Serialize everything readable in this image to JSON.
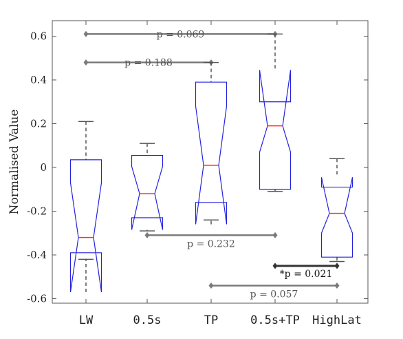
{
  "chart_data": {
    "type": "box",
    "xlabel": "",
    "ylabel": "Normalised Value",
    "ylim": [
      -0.64,
      0.66
    ],
    "yticks": [
      -0.6,
      -0.4,
      -0.2,
      0,
      0.2,
      0.4,
      0.6
    ],
    "ytick_labels": [
      "-0.6",
      "-0.4",
      "-0.2",
      "0",
      "0.2",
      "0.4",
      "0.6"
    ],
    "grid": false,
    "notched": true,
    "colors": {
      "box": "#2222dd",
      "median": "#ff2a2a",
      "whisker": "#555555",
      "bracket": "#7a7a7a",
      "bracket_sig": "#333333"
    },
    "categories": [
      "LW",
      "0.5s",
      "TP",
      "0.5s+TP",
      "HighLat"
    ],
    "boxes": [
      {
        "category": "LW",
        "whisker_low": -0.42,
        "q1": -0.39,
        "median": -0.32,
        "q3": 0.035,
        "whisker_high": 0.21,
        "notch_low": -0.57,
        "notch_high": -0.07
      },
      {
        "category": "0.5s",
        "whisker_low": -0.29,
        "q1": -0.23,
        "median": -0.12,
        "q3": 0.055,
        "whisker_high": 0.11,
        "notch_low": -0.285,
        "notch_high": 0.005
      },
      {
        "category": "TP",
        "whisker_low": -0.24,
        "q1": -0.16,
        "median": 0.01,
        "q3": 0.39,
        "whisker_high": 0.48,
        "notch_low": -0.26,
        "notch_high": 0.28
      },
      {
        "category": "0.5s+TP",
        "whisker_low": -0.11,
        "q1": -0.1,
        "median": 0.19,
        "q3": 0.3,
        "whisker_high": 0.61,
        "notch_low": 0.07,
        "notch_high": 0.445
      },
      {
        "category": "HighLat",
        "whisker_low": -0.43,
        "q1": -0.41,
        "median": -0.21,
        "q3": -0.09,
        "whisker_high": 0.04,
        "notch_low": -0.3,
        "notch_high": -0.045
      }
    ],
    "annotations": [
      {
        "from": "LW",
        "to": "0.5s+TP",
        "y": 0.61,
        "label": "p = 0.069",
        "significant": false
      },
      {
        "from": "LW",
        "to": "TP",
        "y": 0.48,
        "label": "p = 0.188",
        "significant": false
      },
      {
        "from": "0.5s",
        "to": "0.5s+TP",
        "y": -0.31,
        "label": "p = 0.232",
        "significant": false
      },
      {
        "from": "0.5s+TP",
        "to": "HighLat",
        "y": -0.45,
        "label": "*p = 0.021",
        "significant": true
      },
      {
        "from": "TP",
        "to": "HighLat",
        "y": -0.54,
        "label": "p = 0.057",
        "significant": false
      }
    ]
  }
}
